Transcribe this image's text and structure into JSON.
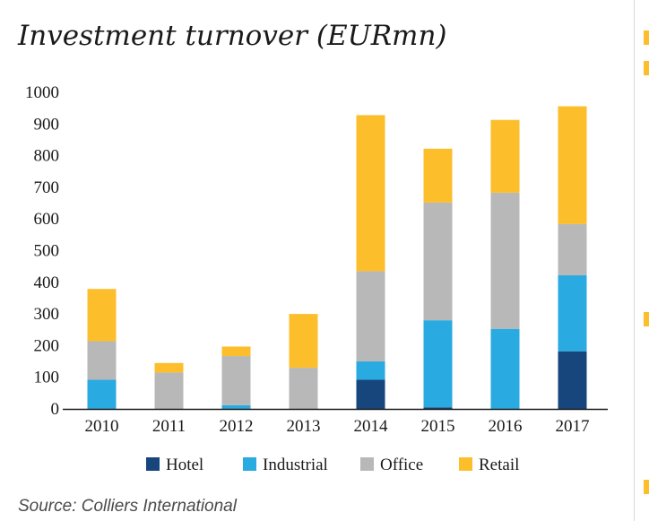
{
  "title": "Investment turnover (EURmn)",
  "source": "Source: Colliers International",
  "colors": {
    "Hotel": "#17467c",
    "Industrial": "#29aae1",
    "Office": "#b8b8b8",
    "Retail": "#fdbe2b",
    "axis": "#1a1a1a",
    "strip_accent": "#fdbe2b",
    "strip_dark": "#1a1a1a"
  },
  "chart_data": {
    "type": "bar",
    "stacked": true,
    "title": "Investment turnover (EURmn)",
    "xlabel": "",
    "ylabel": "",
    "ylim": [
      0,
      1000
    ],
    "yticks": [
      0,
      100,
      200,
      300,
      400,
      500,
      600,
      700,
      800,
      900,
      1000
    ],
    "grid": false,
    "legend_position": "bottom",
    "categories": [
      "2010",
      "2011",
      "2012",
      "2013",
      "2014",
      "2015",
      "2016",
      "2017"
    ],
    "series": [
      {
        "name": "Hotel",
        "values": [
          0,
          0,
          0,
          0,
          92,
          5,
          0,
          182
        ]
      },
      {
        "name": "Industrial",
        "values": [
          92,
          0,
          12,
          0,
          58,
          275,
          253,
          240
        ]
      },
      {
        "name": "Office",
        "values": [
          122,
          115,
          155,
          130,
          285,
          372,
          430,
          162
        ]
      },
      {
        "name": "Retail",
        "values": [
          165,
          30,
          30,
          170,
          493,
          170,
          230,
          372
        ]
      }
    ]
  }
}
